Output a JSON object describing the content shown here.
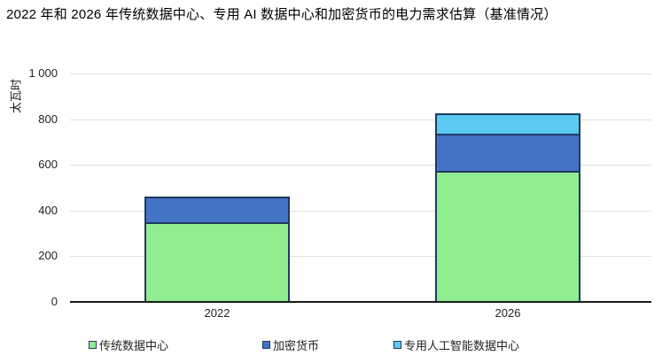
{
  "title": "2022 年和 2026 年传统数据中心、专用 AI 数据中心和加密货币的电力需求估算（基准情况）",
  "chart_data": {
    "type": "bar",
    "stacked": true,
    "title": "2022 年和 2026 年传统数据中心、专用 AI 数据中心和加密货币的电力需求估算（基准情况）",
    "ylabel": "太瓦时",
    "xlabel": "",
    "ylim": [
      0,
      1000
    ],
    "grid": true,
    "legend_position": "bottom",
    "categories": [
      "2022",
      "2026"
    ],
    "series": [
      {
        "name": "传统数据中心",
        "color": "#90ee90",
        "values": [
          350,
          575
        ]
      },
      {
        "name": "加密货币",
        "color": "#4472c4",
        "values": [
          110,
          160
        ]
      },
      {
        "name": "专用人工智能数据中心",
        "color": "#5bc9f0",
        "values": [
          0,
          90
        ]
      }
    ],
    "yticks": [
      {
        "v": 0,
        "label": "0"
      },
      {
        "v": 200,
        "label": "200"
      },
      {
        "v": 400,
        "label": "400"
      },
      {
        "v": 600,
        "label": "600"
      },
      {
        "v": 800,
        "label": "800"
      },
      {
        "v": 1000,
        "label": "1 000"
      }
    ],
    "border_color": "#1f3a5f",
    "gridline_color": "#e0e0e0",
    "axis_color": "#1a1a1a"
  }
}
